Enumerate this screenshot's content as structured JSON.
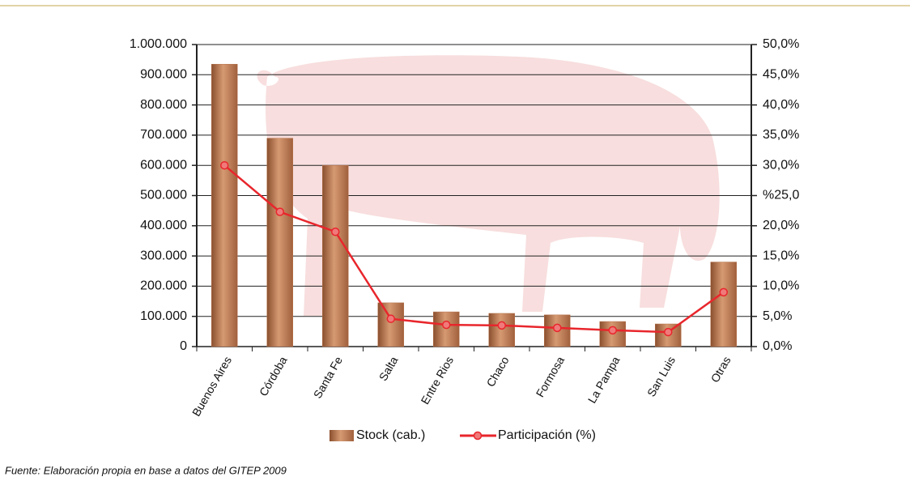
{
  "chart_data": {
    "type": "bar",
    "categories": [
      "Buenos Aires",
      "Córdoba",
      "Santa Fe",
      "Salta",
      "Entre Rios",
      "Chaco",
      "Formosa",
      "La Pampa",
      "San Luis",
      "Otras"
    ],
    "series": [
      {
        "name": "Stock (cab.)",
        "type": "bar",
        "color": "#b8734c",
        "values": [
          935000,
          690000,
          600000,
          145000,
          115000,
          110000,
          105000,
          83000,
          75000,
          280000
        ]
      },
      {
        "name": "Participación (%)",
        "type": "line",
        "axis": "y2",
        "color": "#e8262c",
        "values": [
          30.0,
          22.3,
          19.0,
          4.6,
          3.6,
          3.5,
          3.1,
          2.7,
          2.4,
          9.0
        ]
      }
    ],
    "ylim": [
      0,
      1000000
    ],
    "yticks": [
      0,
      {
        "value": 100000,
        "label": "100.000"
      },
      {
        "value": 200000,
        "label": "200.000"
      },
      {
        "value": 300000,
        "label": "300.000"
      },
      {
        "value": 400000,
        "label": "400.000"
      },
      {
        "value": 500000,
        "label": "500.000"
      },
      {
        "value": 600000,
        "label": "600.000"
      },
      {
        "value": 700000,
        "label": "700.000"
      },
      {
        "value": 800000,
        "label": "800.000"
      },
      {
        "value": 900000,
        "label": "900.000"
      },
      {
        "value": 1000000,
        "label": "1.000.000"
      }
    ],
    "y2lim": [
      0,
      50
    ],
    "y2ticks": [
      {
        "value": 0,
        "label": "0,0%"
      },
      {
        "value": 5,
        "label": "5,0%"
      },
      {
        "value": 10,
        "label": "10,0%"
      },
      {
        "value": 15,
        "label": "15,0%"
      },
      {
        "value": 20,
        "label": "20,0%"
      },
      {
        "value": 25,
        "label": "%25,0"
      },
      {
        "value": 30,
        "label": "30,0%"
      },
      {
        "value": 35,
        "label": "35,0%"
      },
      {
        "value": 40,
        "label": "40,0%"
      },
      {
        "value": 45,
        "label": "45,0%"
      },
      {
        "value": 50,
        "label": "50,0%"
      }
    ],
    "grid": true,
    "legend": "bottom",
    "source": "Fuente: Elaboración propia en base a datos del GITEP 2009"
  }
}
